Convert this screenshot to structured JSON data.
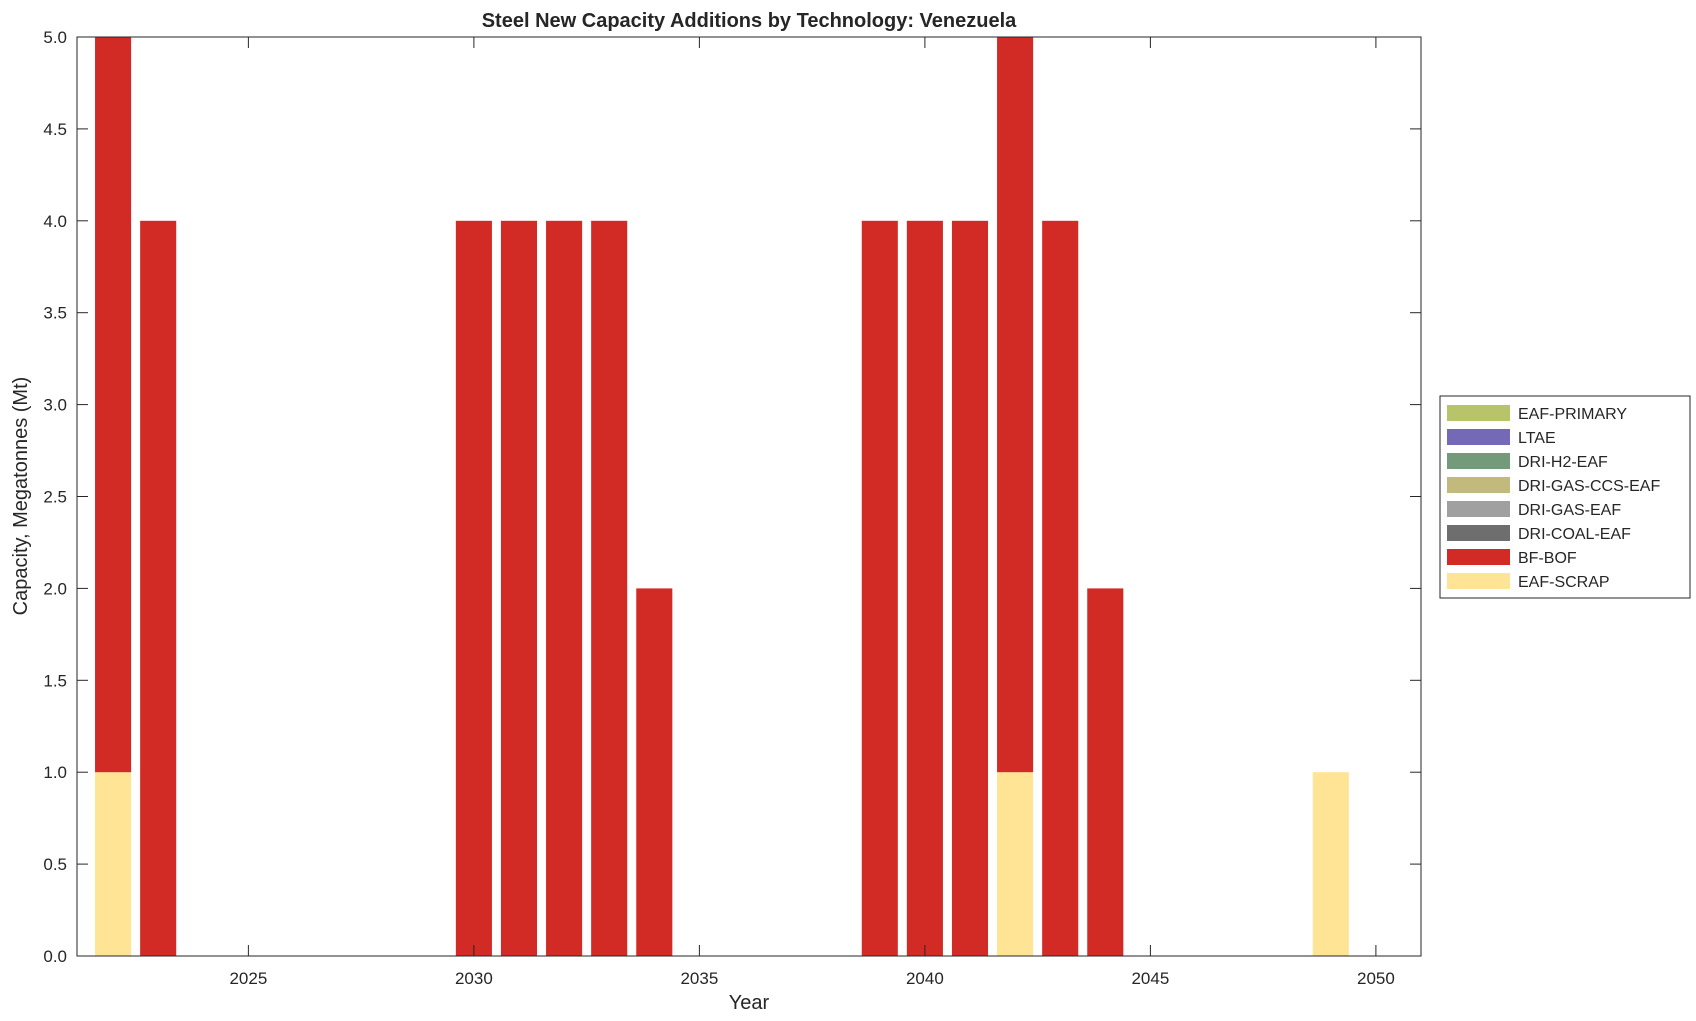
{
  "chart_data": {
    "type": "bar",
    "stacked": true,
    "title": "Steel New Capacity Additions by Technology: Venezuela",
    "xlabel": "Year",
    "ylabel": "Capacity, Megatonnes (Mt)",
    "xlim": [
      2021.2,
      2051
    ],
    "ylim": [
      0,
      5
    ],
    "x_ticks": [
      "2025",
      "2030",
      "2035",
      "2040",
      "2045",
      "2050"
    ],
    "y_ticks": [
      "0.0",
      "0.5",
      "1.0",
      "1.5",
      "2.0",
      "2.5",
      "3.0",
      "3.5",
      "4.0",
      "4.5",
      "5.0"
    ],
    "legend_position": "outside-right",
    "x": [
      2022,
      2023,
      2030,
      2031,
      2032,
      2033,
      2034,
      2039,
      2040,
      2041,
      2042,
      2043,
      2044,
      2049
    ],
    "series": [
      {
        "name": "EAF-SCRAP",
        "color": "#FFE496",
        "values": [
          1,
          0,
          0,
          0,
          0,
          0,
          0,
          0,
          0,
          0,
          1,
          0,
          0,
          1
        ]
      },
      {
        "name": "BF-BOF",
        "color": "#D22A25",
        "values": [
          4,
          4,
          4,
          4,
          4,
          4,
          2,
          4,
          4,
          4,
          4,
          4,
          2,
          0
        ]
      },
      {
        "name": "DRI-COAL-EAF",
        "color": "#6E6E6E",
        "values": [
          0,
          0,
          0,
          0,
          0,
          0,
          0,
          0,
          0,
          0,
          0,
          0,
          0,
          0
        ]
      },
      {
        "name": "DRI-GAS-EAF",
        "color": "#A0A0A0",
        "values": [
          0,
          0,
          0,
          0,
          0,
          0,
          0,
          0,
          0,
          0,
          0,
          0,
          0,
          0
        ]
      },
      {
        "name": "DRI-GAS-CCS-EAF",
        "color": "#C2B97C",
        "values": [
          0,
          0,
          0,
          0,
          0,
          0,
          0,
          0,
          0,
          0,
          0,
          0,
          0,
          0
        ]
      },
      {
        "name": "DRI-H2-EAF",
        "color": "#739A7B",
        "values": [
          0,
          0,
          0,
          0,
          0,
          0,
          0,
          0,
          0,
          0,
          0,
          0,
          0,
          0
        ]
      },
      {
        "name": "LTAE",
        "color": "#7469B7",
        "values": [
          0,
          0,
          0,
          0,
          0,
          0,
          0,
          0,
          0,
          0,
          0,
          0,
          0,
          0
        ]
      },
      {
        "name": "EAF-PRIMARY",
        "color": "#B8C46A",
        "values": [
          0,
          0,
          0,
          0,
          0,
          0,
          0,
          0,
          0,
          0,
          0,
          0,
          0,
          0
        ]
      }
    ],
    "legend_order": [
      "EAF-PRIMARY",
      "LTAE",
      "DRI-H2-EAF",
      "DRI-GAS-CCS-EAF",
      "DRI-GAS-EAF",
      "DRI-COAL-EAF",
      "BF-BOF",
      "EAF-SCRAP"
    ]
  }
}
